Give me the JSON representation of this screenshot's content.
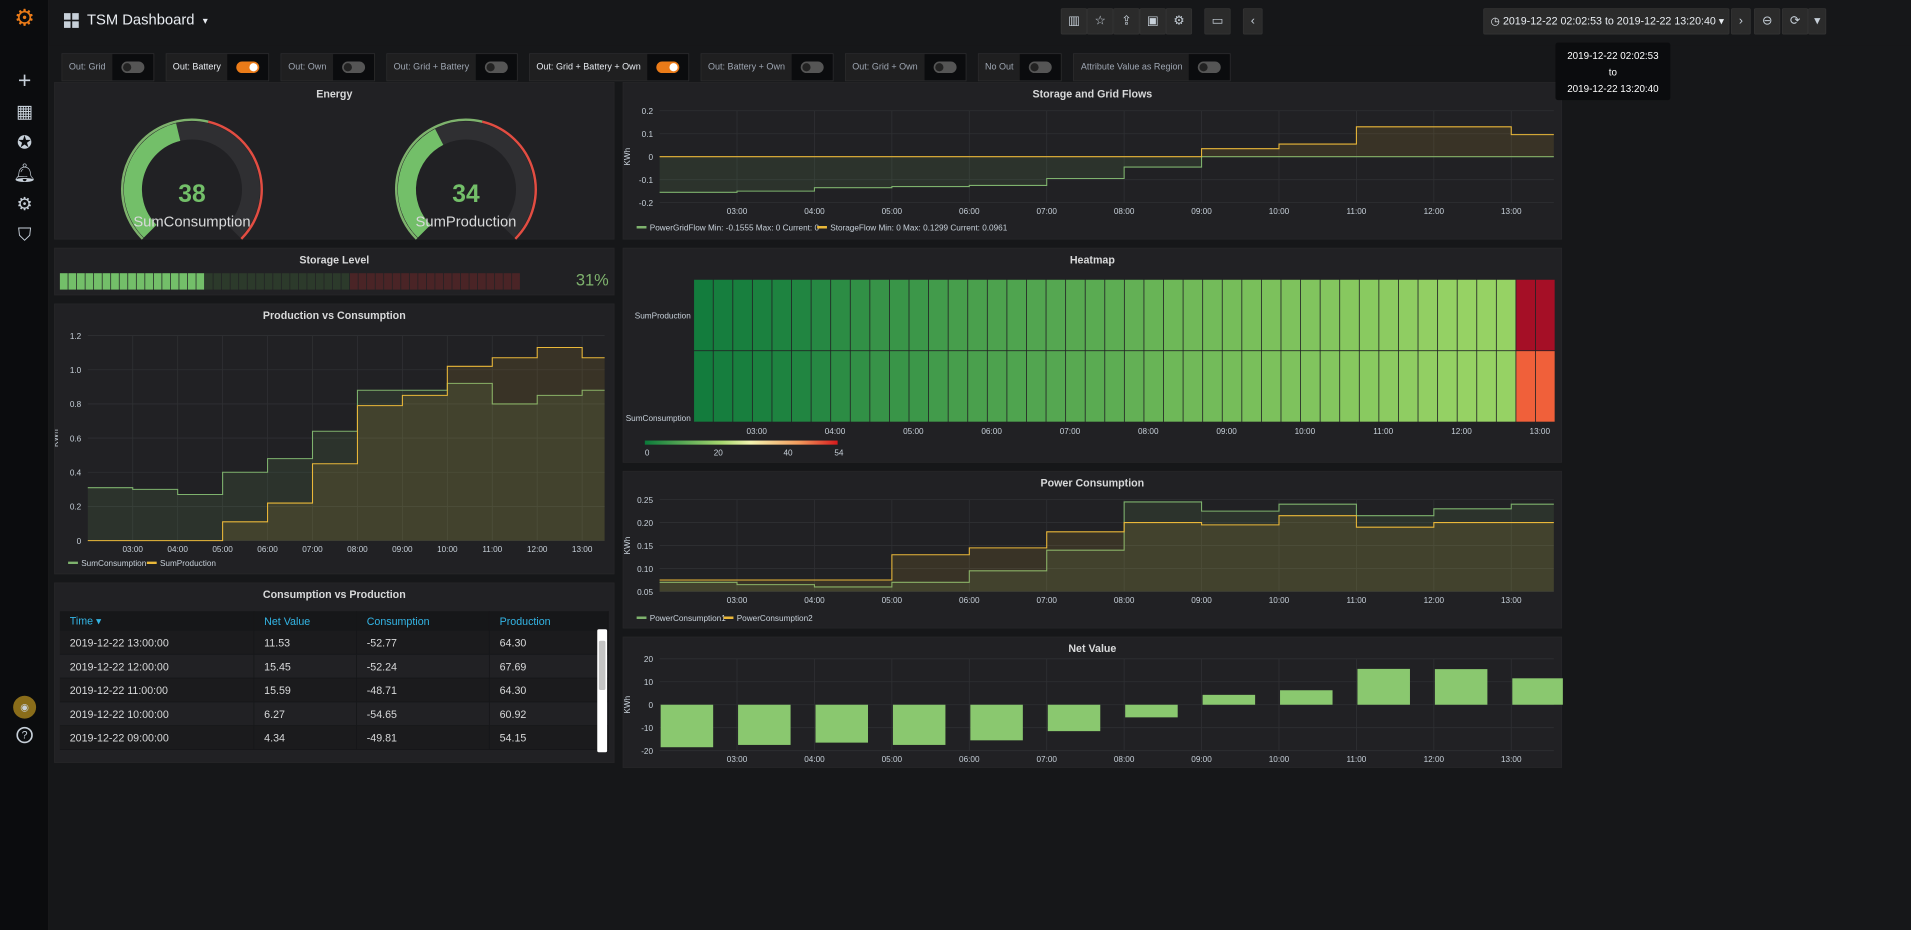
{
  "app": {
    "title": "TSM Dashboard",
    "caret": "▾"
  },
  "toolbar": {
    "time_from": "2019-12-22 02:02:53",
    "time_sep": "to",
    "time_to": "2019-12-22 13:20:40",
    "time_range": "2019-12-22 02:02:53 to 2019-12-22 13:20:40"
  },
  "variables": [
    {
      "label": "Out: Grid",
      "on": false
    },
    {
      "label": "Out: Battery",
      "on": true
    },
    {
      "label": "Out: Own",
      "on": false
    },
    {
      "label": "Out: Grid + Battery",
      "on": false
    },
    {
      "label": "Out: Grid + Battery + Own",
      "on": true
    },
    {
      "label": "Out: Battery + Own",
      "on": false
    },
    {
      "label": "Out: Grid + Own",
      "on": false
    },
    {
      "label": "No Out",
      "on": false
    },
    {
      "label": "Attribute Value as Region",
      "on": false
    }
  ],
  "energy": {
    "title": "Energy",
    "g1": {
      "value": "38",
      "label": "SumConsumption",
      "frac": 0.45
    },
    "g2": {
      "value": "34",
      "label": "SumProduction",
      "frac": 0.4
    }
  },
  "storage": {
    "title": "Storage Level",
    "value": "31%",
    "level": 0.31
  },
  "pvc": {
    "title": "Production vs Consumption",
    "ylabel": "KWh",
    "yticks": [
      "1.2",
      "1.0",
      "0.8",
      "0.6",
      "0.4",
      "0.2",
      "0"
    ],
    "xticks": [
      "03:00",
      "04:00",
      "05:00",
      "06:00",
      "07:00",
      "08:00",
      "09:00",
      "10:00",
      "11:00",
      "12:00",
      "13:00"
    ],
    "legend": [
      "SumConsumption",
      "SumProduction"
    ]
  },
  "table": {
    "title": "Consumption vs Production",
    "headers": [
      "Time ▾",
      "Net Value",
      "Consumption",
      "Production"
    ],
    "rows": [
      [
        "2019-12-22 13:00:00",
        "11.53",
        "-52.77",
        "64.30"
      ],
      [
        "2019-12-22 12:00:00",
        "15.45",
        "-52.24",
        "67.69"
      ],
      [
        "2019-12-22 11:00:00",
        "15.59",
        "-48.71",
        "64.30"
      ],
      [
        "2019-12-22 10:00:00",
        "6.27",
        "-54.65",
        "60.92"
      ],
      [
        "2019-12-22 09:00:00",
        "4.34",
        "-49.81",
        "54.15"
      ]
    ]
  },
  "sgf": {
    "title": "Storage and Grid Flows",
    "ylabel": "KWh",
    "yticks": [
      "0.2",
      "0.1",
      "0",
      "-0.1",
      "-0.2"
    ],
    "xticks": [
      "03:00",
      "04:00",
      "05:00",
      "06:00",
      "07:00",
      "08:00",
      "09:00",
      "10:00",
      "11:00",
      "12:00",
      "13:00"
    ],
    "legend1": "PowerGridFlow  Min: -0.1555  Max: 0  Current: 0",
    "legend2": "StorageFlow  Min: 0  Max: 0.1299  Current: 0.0961"
  },
  "heatmap": {
    "title": "Heatmap",
    "rows": [
      "SumProduction",
      "SumConsumption"
    ],
    "xticks": [
      "03:00",
      "04:00",
      "05:00",
      "06:00",
      "07:00",
      "08:00",
      "09:00",
      "10:00",
      "11:00",
      "12:00",
      "13:00"
    ],
    "scale": [
      "0",
      "20",
      "40",
      "54"
    ]
  },
  "pc": {
    "title": "Power Consumption",
    "ylabel": "KWh",
    "yticks": [
      "0.25",
      "0.20",
      "0.15",
      "0.10",
      "0.05"
    ],
    "xticks": [
      "03:00",
      "04:00",
      "05:00",
      "06:00",
      "07:00",
      "08:00",
      "09:00",
      "10:00",
      "11:00",
      "12:00",
      "13:00"
    ],
    "legend": [
      "PowerConsumption1",
      "PowerConsumption2"
    ]
  },
  "nv": {
    "title": "Net Value",
    "ylabel": "KWh",
    "yticks": [
      "20",
      "10",
      "0",
      "-10",
      "-20"
    ],
    "xticks": [
      "03:00",
      "04:00",
      "05:00",
      "06:00",
      "07:00",
      "08:00",
      "09:00",
      "10:00",
      "11:00",
      "12:00",
      "13:00"
    ]
  },
  "colors": {
    "green": "#7eb26d",
    "yellow": "#eab839",
    "red": "#e24d42",
    "orange": "#eb7b18"
  },
  "chart_data": [
    {
      "type": "line",
      "title": "Production vs Consumption",
      "ylabel": "KWh",
      "ylim": [
        0,
        1.2
      ],
      "x": [
        "02:00",
        "03:00",
        "04:00",
        "05:00",
        "06:00",
        "07:00",
        "08:00",
        "09:00",
        "10:00",
        "11:00",
        "12:00",
        "13:00"
      ],
      "series": [
        {
          "name": "SumConsumption",
          "values": [
            0.31,
            0.3,
            0.27,
            0.4,
            0.48,
            0.64,
            0.88,
            0.88,
            0.92,
            0.8,
            0.85,
            0.88
          ]
        },
        {
          "name": "SumProduction",
          "values": [
            0,
            0,
            0,
            0.11,
            0.22,
            0.45,
            0.79,
            0.85,
            1.02,
            1.07,
            1.13,
            1.07
          ]
        }
      ]
    },
    {
      "type": "line",
      "title": "Storage and Grid Flows",
      "ylabel": "KWh",
      "ylim": [
        -0.2,
        0.2
      ],
      "x": [
        "02:00",
        "03:00",
        "04:00",
        "05:00",
        "06:00",
        "07:00",
        "08:00",
        "09:00",
        "10:00",
        "11:00",
        "12:00",
        "13:00"
      ],
      "series": [
        {
          "name": "PowerGridFlow",
          "values": [
            -0.155,
            -0.15,
            -0.135,
            -0.13,
            -0.125,
            -0.095,
            -0.045,
            0,
            0,
            0,
            0,
            0
          ]
        },
        {
          "name": "StorageFlow",
          "values": [
            0,
            0,
            0,
            0,
            0,
            0,
            0,
            0.035,
            0.055,
            0.13,
            0.13,
            0.096
          ]
        }
      ]
    },
    {
      "type": "line",
      "title": "Power Consumption",
      "ylabel": "KWh",
      "ylim": [
        0.05,
        0.25
      ],
      "x": [
        "02:00",
        "03:00",
        "04:00",
        "05:00",
        "06:00",
        "07:00",
        "08:00",
        "09:00",
        "10:00",
        "11:00",
        "12:00",
        "13:00"
      ],
      "series": [
        {
          "name": "PowerConsumption1",
          "values": [
            0.07,
            0.065,
            0.06,
            0.07,
            0.095,
            0.14,
            0.245,
            0.225,
            0.24,
            0.215,
            0.23,
            0.24
          ]
        },
        {
          "name": "PowerConsumption2",
          "values": [
            0.075,
            0.075,
            0.075,
            0.13,
            0.145,
            0.18,
            0.2,
            0.195,
            0.215,
            0.19,
            0.2,
            0.2
          ]
        }
      ]
    },
    {
      "type": "bar",
      "title": "Net Value",
      "ylabel": "KWh",
      "ylim": [
        -20,
        20
      ],
      "categories": [
        "02:00",
        "03:00",
        "04:00",
        "05:00",
        "06:00",
        "07:00",
        "08:00",
        "09:00",
        "10:00",
        "11:00",
        "12:00",
        "13:00"
      ],
      "values": [
        -18.5,
        -17.5,
        -16.5,
        -17.5,
        -15.5,
        -11.5,
        -5.5,
        4.3,
        6.3,
        15.6,
        15.5,
        11.5
      ]
    },
    {
      "type": "heatmap",
      "title": "Heatmap",
      "rows": [
        "SumProduction",
        "SumConsumption"
      ],
      "scale": [
        0,
        54
      ],
      "values": [
        [
          1,
          2,
          3,
          4,
          5,
          6,
          8,
          10,
          12,
          14,
          15,
          16,
          18,
          20,
          21,
          22,
          23,
          24,
          25,
          26,
          27,
          28,
          30,
          32,
          34,
          35,
          36,
          37,
          38,
          39,
          40,
          41,
          42,
          43,
          44,
          45,
          46,
          47,
          48,
          49,
          50,
          52,
          54,
          54
        ],
        [
          1,
          2,
          3,
          4,
          5,
          6,
          8,
          10,
          12,
          14,
          15,
          16,
          18,
          20,
          21,
          22,
          23,
          24,
          25,
          26,
          27,
          28,
          30,
          32,
          34,
          35,
          36,
          37,
          38,
          39,
          40,
          41,
          42,
          43,
          44,
          45,
          46,
          47,
          48,
          49,
          50,
          52,
          53,
          53
        ]
      ]
    }
  ]
}
